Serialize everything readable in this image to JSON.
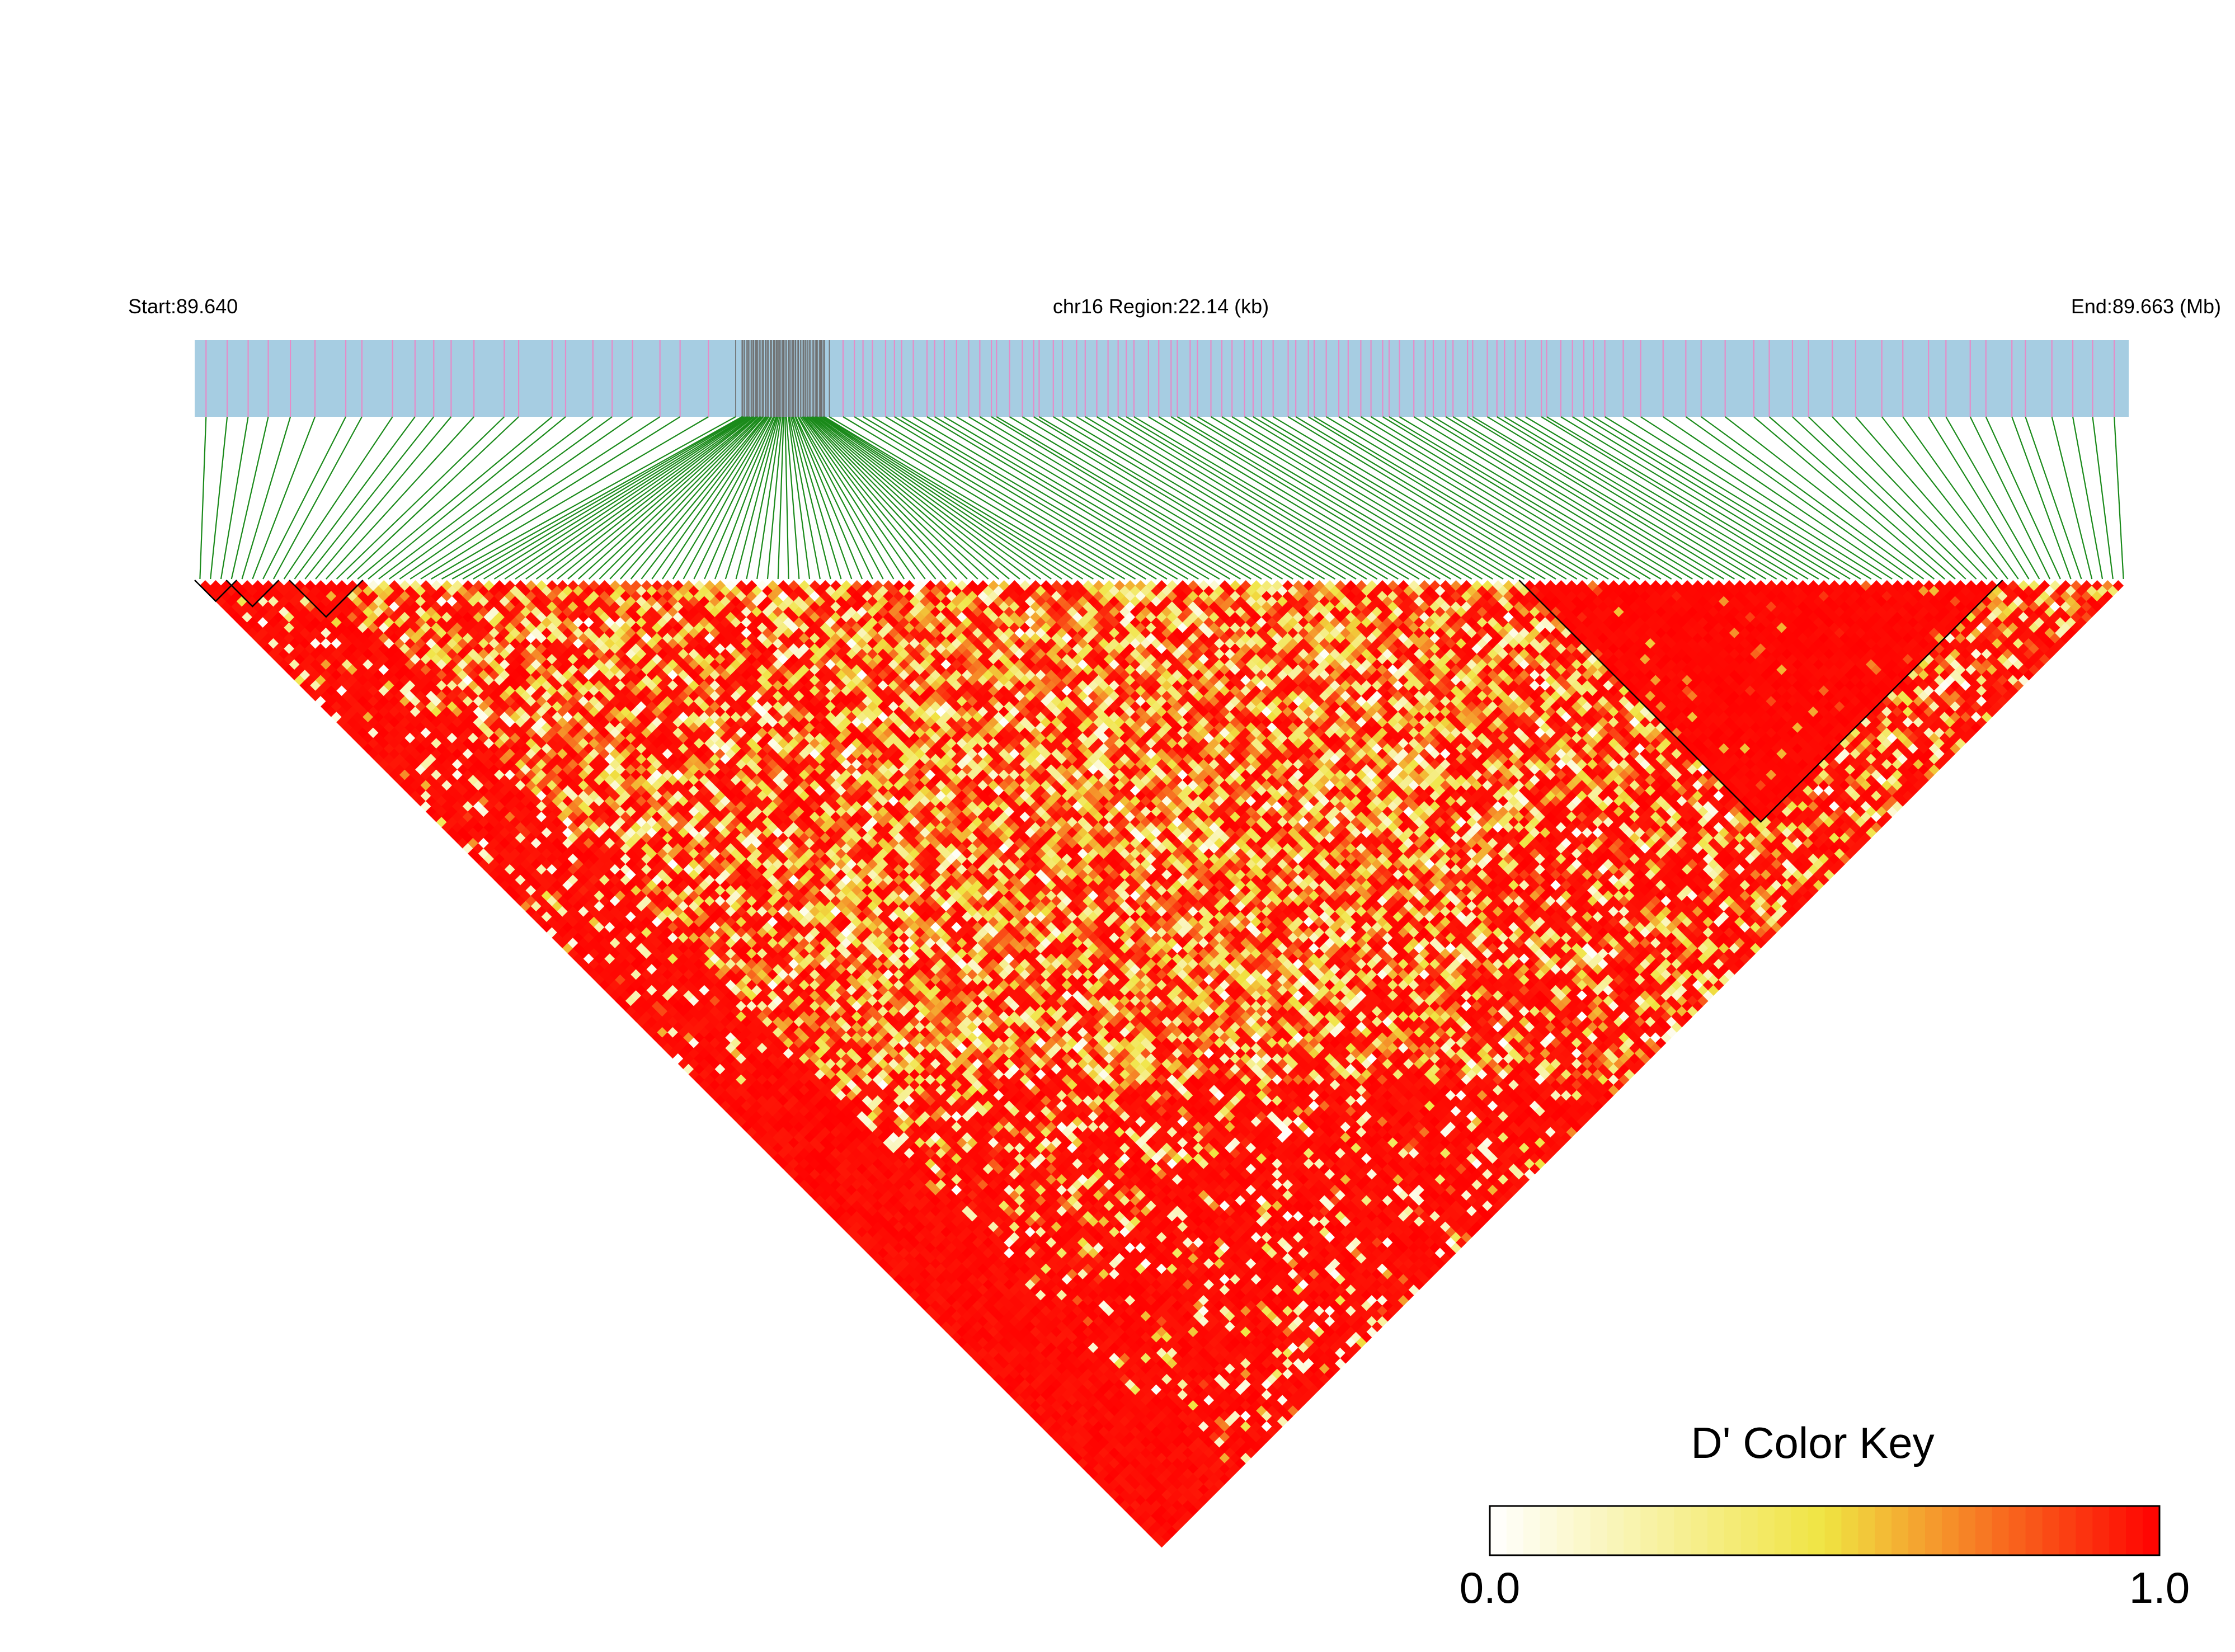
{
  "header": {
    "start_label": "Start:89.640",
    "region_label": "chr16 Region:22.14 (kb)",
    "end_label": "End:89.663 (Mb)"
  },
  "chart_data": {
    "type": "heatmap",
    "title": "",
    "chromosome": "chr16",
    "region_start_mb": 89.64,
    "region_end_mb": 89.663,
    "region_length_kb": 22.14,
    "snp_count": 184,
    "snp_density": [
      {
        "from": 89.64,
        "to": 89.6465,
        "snps": 24
      },
      {
        "from": 89.6465,
        "to": 89.6475,
        "snps": 62
      },
      {
        "from": 89.6475,
        "to": 89.6568,
        "snps": 74
      },
      {
        "from": 89.6568,
        "to": 89.663,
        "snps": 24
      }
    ],
    "ld_blocks": [
      {
        "first_snp": 0,
        "last_snp": 3
      },
      {
        "first_snp": 3,
        "last_snp": 7
      },
      {
        "first_snp": 9,
        "last_snp": 15
      },
      {
        "first_snp": 126,
        "last_snp": 171
      }
    ],
    "color_scale": {
      "measure": "D'",
      "min": 0.0,
      "max": 1.0,
      "colors": [
        "#ffffff",
        "#f0e442",
        "#ff0000"
      ]
    },
    "colors": {
      "gene_track": "#a6cde2",
      "snp_ticks": "#e58cc8",
      "snp_ticks_dense": "#6e6e6e",
      "connectors": "#1a8a1a",
      "block_outline": "#000000"
    }
  },
  "legend": {
    "title": "D' Color Key",
    "min_label": "0.0",
    "max_label": "1.0"
  }
}
